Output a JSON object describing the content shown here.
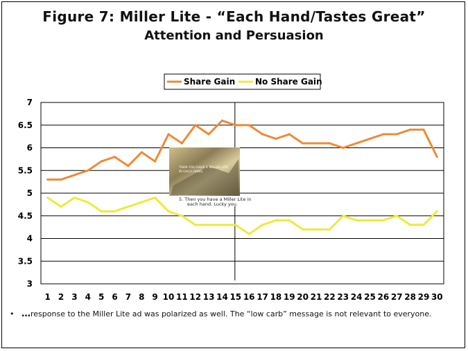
{
  "title_line1": "Figure 7: Miller Lite - “Each Hand/Tastes Great”",
  "title_line2": "Attention and Persuasion",
  "footnote_bullet": "•",
  "footnote_prefix": "…",
  "footnote": "response to the Miller Lite ad was polarized as well.  The “low carb” message is not relevant to everyone.",
  "inset": {
    "caption_line1": "5. Then you have a Miller Lite in",
    "caption_line2": "each hand. Lucky you.",
    "overlay_text_line1": "THEN YOU HAVE A MILLER LITE",
    "overlay_text_line2": "IN EACH HAND."
  },
  "colors": {
    "share_gain": "#ee8a35",
    "no_share_gain": "#eeea3a"
  },
  "chart_data": {
    "type": "line",
    "title": "Figure 7: Miller Lite - “Each Hand/Tastes Great” Attention and Persuasion",
    "xlabel": "",
    "ylabel": "",
    "categories": [
      "1",
      "2",
      "3",
      "4",
      "5",
      "6",
      "7",
      "8",
      "9",
      "10",
      "11",
      "12",
      "13",
      "14",
      "15",
      "16",
      "17",
      "18",
      "19",
      "20",
      "21",
      "22",
      "23",
      "24",
      "25",
      "26",
      "27",
      "28",
      "29",
      "30"
    ],
    "ylim": [
      3,
      7
    ],
    "yticks": [
      "3",
      "3.5",
      "4",
      "4.5",
      "5",
      "5.5",
      "6",
      "6.5",
      "7"
    ],
    "ytick_values": [
      3,
      3.5,
      4,
      4.5,
      5,
      5.5,
      6,
      6.5,
      7
    ],
    "grid": "horizontal",
    "legend_position": "top-right",
    "marker_x": 15,
    "series": [
      {
        "name": "Share Gain",
        "values": [
          5.3,
          5.3,
          5.4,
          5.5,
          5.7,
          5.8,
          5.6,
          5.9,
          5.7,
          6.3,
          6.1,
          6.5,
          6.3,
          6.6,
          6.5,
          6.5,
          6.3,
          6.2,
          6.3,
          6.1,
          6.1,
          6.1,
          6.0,
          6.1,
          6.2,
          6.3,
          6.3,
          6.4,
          6.4,
          5.8
        ]
      },
      {
        "name": "No Share Gain",
        "values": [
          4.9,
          4.7,
          4.9,
          4.8,
          4.6,
          4.6,
          4.7,
          4.8,
          4.9,
          4.6,
          4.5,
          4.3,
          4.3,
          4.3,
          4.3,
          4.1,
          4.3,
          4.4,
          4.4,
          4.2,
          4.2,
          4.2,
          4.5,
          4.4,
          4.4,
          4.4,
          4.5,
          4.3,
          4.3,
          4.6
        ]
      }
    ]
  }
}
